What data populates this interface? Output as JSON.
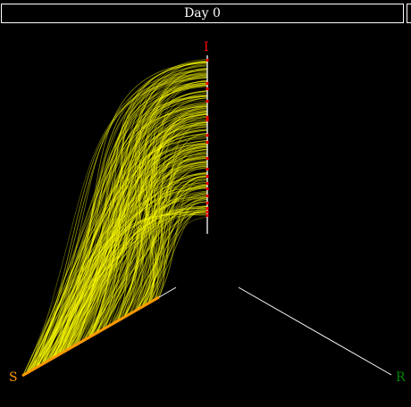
{
  "header": {
    "day_label": "Day 0"
  },
  "axes": {
    "s_label": "S",
    "i_label": "I",
    "r_label": "R",
    "s_color": "#ff9900",
    "i_color": "#ff0000",
    "r_color": "#008800",
    "arc_color": "#ffff00",
    "axis_color": "#ffffff"
  }
}
